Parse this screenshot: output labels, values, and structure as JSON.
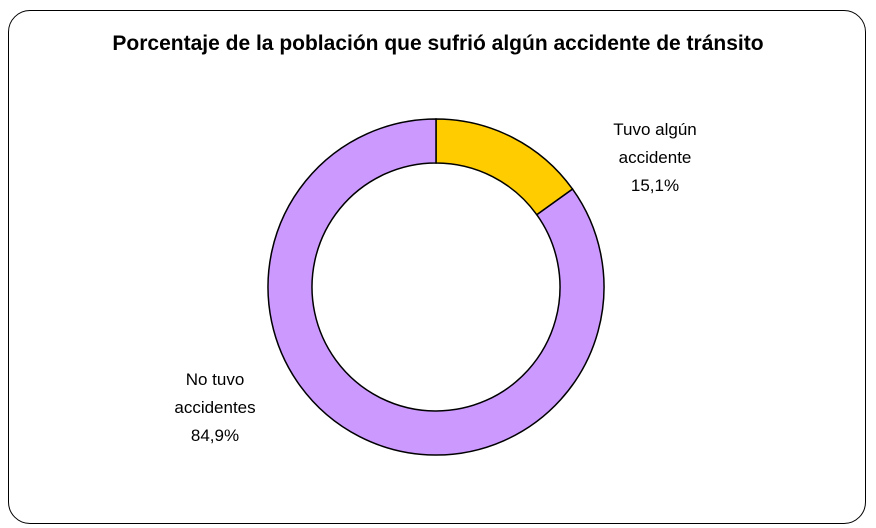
{
  "chart_data": {
    "type": "donut",
    "title": "Porcentaje de la población que sufrió algún accidente de tránsito",
    "categories": [
      "Tuvo algún accidente",
      "No tuvo accidentes"
    ],
    "values": [
      15.1,
      84.9
    ],
    "value_labels": [
      "15,1%",
      "84,9%"
    ],
    "colors": [
      "#FFCC00",
      "#CC99FF"
    ]
  }
}
